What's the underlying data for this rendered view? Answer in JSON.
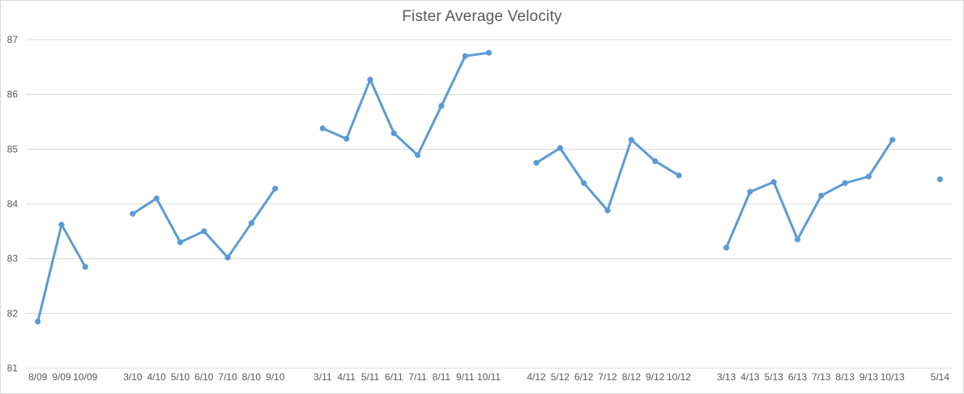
{
  "chart_data": {
    "type": "line",
    "title": "Fister Average Velocity",
    "xlabel": "",
    "ylabel": "",
    "ylim": [
      81,
      87
    ],
    "yticks": [
      81,
      82,
      83,
      84,
      85,
      86,
      87
    ],
    "grid": true,
    "legend": false,
    "line_color": "#5b9bd5",
    "marker_color": "#5b9bd5",
    "text_color": "#595959",
    "gridline_color": "#d9d9d9",
    "border_color": "#d9d9d9",
    "categories": [
      "8/09",
      "9/09",
      "10/09",
      "3/10",
      "4/10",
      "5/10",
      "6/10",
      "7/10",
      "8/10",
      "9/10",
      "3/11",
      "4/11",
      "5/11",
      "6/11",
      "7/11",
      "8/11",
      "9/11",
      "10/11",
      "4/12",
      "5/12",
      "6/12",
      "7/12",
      "8/12",
      "9/12",
      "10/12",
      "3/13",
      "4/13",
      "5/13",
      "6/13",
      "7/13",
      "8/13",
      "9/13",
      "10/13",
      "5/14"
    ],
    "values": [
      81.85,
      83.62,
      82.85,
      83.82,
      84.1,
      83.3,
      83.5,
      83.02,
      83.65,
      84.28,
      85.38,
      85.19,
      86.27,
      85.29,
      84.89,
      85.79,
      86.7,
      86.76,
      84.75,
      85.02,
      84.38,
      83.88,
      85.17,
      84.78,
      84.52,
      83.2,
      84.22,
      84.4,
      83.35,
      84.15,
      84.38,
      84.5,
      85.17,
      84.45
    ],
    "gap_after_categories": [
      "10/09",
      "9/10",
      "10/11",
      "10/12",
      "10/13"
    ]
  }
}
